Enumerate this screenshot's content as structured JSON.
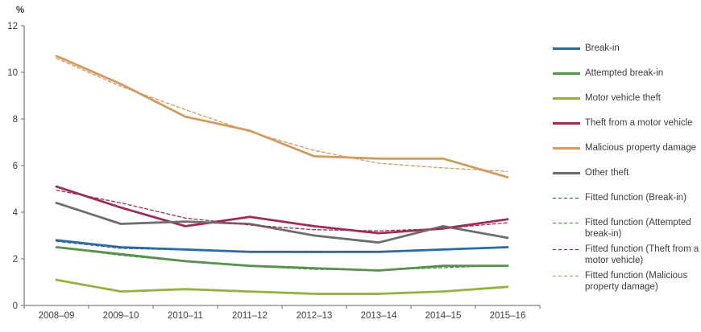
{
  "chart_data": {
    "type": "line",
    "title": "",
    "ylabel": "%",
    "xlabel": "",
    "ylim": [
      0,
      12
    ],
    "ytick_step": 2,
    "grid": false,
    "legend_position": "right",
    "categories": [
      "2008–09",
      "2009–10",
      "2010–11",
      "2011–12",
      "2012–13",
      "2013–14",
      "2014–15",
      "2015–16"
    ],
    "yticks": [
      0,
      2,
      4,
      6,
      8,
      10,
      12
    ],
    "series": [
      {
        "name": "Break-in",
        "color": "#2e6b9f",
        "style": "solid",
        "values": [
          2.8,
          2.5,
          2.4,
          2.3,
          2.3,
          2.3,
          2.4,
          2.5
        ]
      },
      {
        "name": "Attempted break-in",
        "color": "#55934d",
        "style": "solid",
        "values": [
          2.5,
          2.2,
          1.9,
          1.7,
          1.6,
          1.5,
          1.7,
          1.7
        ]
      },
      {
        "name": "Motor vehicle theft",
        "color": "#93b13d",
        "style": "solid",
        "values": [
          1.1,
          0.6,
          0.7,
          0.6,
          0.5,
          0.5,
          0.6,
          0.8
        ]
      },
      {
        "name": "Theft from a motor vehicle",
        "color": "#a12a59",
        "style": "solid",
        "values": [
          5.1,
          4.2,
          3.4,
          3.8,
          3.4,
          3.1,
          3.3,
          3.7
        ]
      },
      {
        "name": "Other theft",
        "color": "#6d6d70",
        "style": "solid",
        "values": [
          4.4,
          3.5,
          3.6,
          3.5,
          3.0,
          2.7,
          3.4,
          2.9
        ]
      },
      {
        "name": "Malicious property damage",
        "color": "#d29b5f",
        "style": "solid",
        "values": [
          10.7,
          9.5,
          8.1,
          7.5,
          6.4,
          6.3,
          6.3,
          5.5
        ]
      },
      {
        "name": "Fitted function (Break-in)",
        "color": "#2e6b9f",
        "style": "dashed",
        "values": [
          2.75,
          2.45,
          2.38,
          2.3,
          2.27,
          2.3,
          2.4,
          2.52
        ]
      },
      {
        "name": "Fitted function (Attempted break-in)",
        "color": "#55934d",
        "style": "dashed",
        "values": [
          2.5,
          2.15,
          1.88,
          1.68,
          1.55,
          1.52,
          1.62,
          1.72
        ]
      },
      {
        "name": "Fitted function (Theft from a motor vehicle)",
        "color": "#a12a59",
        "style": "dashed",
        "values": [
          4.95,
          4.4,
          3.75,
          3.45,
          3.25,
          3.2,
          3.3,
          3.55
        ]
      },
      {
        "name": "Fitted function (Malicious property damage)",
        "color": "#d29b5f",
        "style": "dashed",
        "values": [
          10.6,
          9.4,
          8.4,
          7.45,
          6.65,
          6.1,
          5.9,
          5.75
        ]
      }
    ],
    "legend_order": [
      "Break-in",
      "Attempted break-in",
      "Motor vehicle theft",
      "Theft from a motor vehicle",
      "Malicious property damage",
      "Other theft",
      "Fitted function (Break-in)",
      "Fitted function (Attempted break-in)",
      "Fitted function (Theft from a motor vehicle)",
      "Fitted function (Malicious property damage)"
    ]
  },
  "colors": {
    "axis": "#808080",
    "tick_text": "#3d3d3d"
  }
}
